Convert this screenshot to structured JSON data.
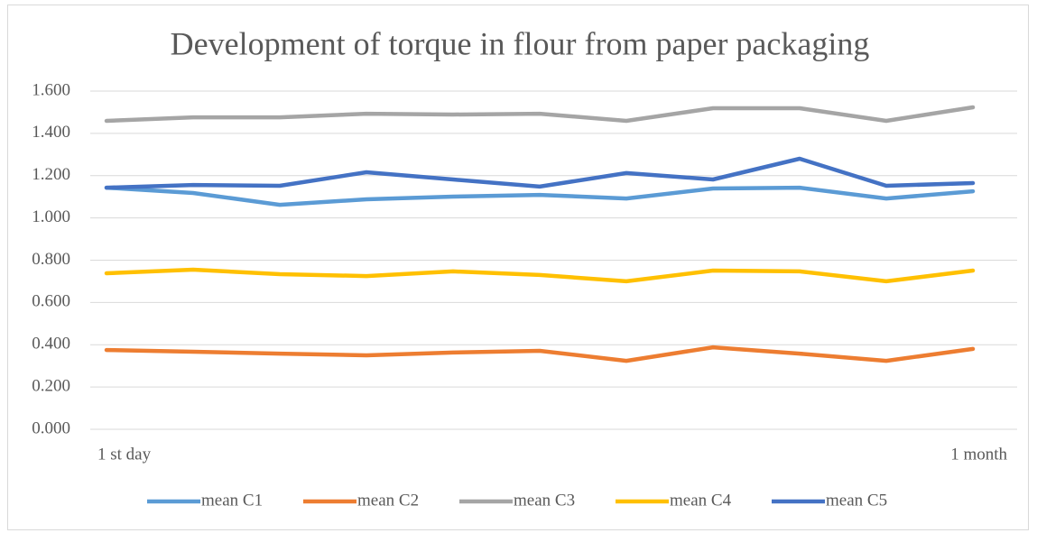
{
  "chart_data": {
    "type": "line",
    "title": "Development of torque in flour from paper packaging",
    "categories": [
      "1 st day",
      null,
      null,
      null,
      null,
      null,
      null,
      null,
      null,
      null,
      "1 month"
    ],
    "series": [
      {
        "name": "mean C1",
        "color": "#5b9bd5",
        "values": [
          1.143,
          1.118,
          1.062,
          1.088,
          1.101,
          1.109,
          1.092,
          1.139,
          1.143,
          1.092,
          1.126
        ]
      },
      {
        "name": "mean C2",
        "color": "#ed7d31",
        "values": [
          0.375,
          0.367,
          0.358,
          0.35,
          0.363,
          0.371,
          0.324,
          0.388,
          0.358,
          0.324,
          0.38
        ]
      },
      {
        "name": "mean C3",
        "color": "#a5a5a5",
        "values": [
          1.459,
          1.476,
          1.476,
          1.493,
          1.489,
          1.493,
          1.459,
          1.519,
          1.519,
          1.459,
          1.523
        ]
      },
      {
        "name": "mean C4",
        "color": "#ffc000",
        "values": [
          0.738,
          0.755,
          0.734,
          0.725,
          0.747,
          0.73,
          0.7,
          0.751,
          0.747,
          0.7,
          0.751
        ]
      },
      {
        "name": "mean C5",
        "color": "#4472c4",
        "values": [
          1.143,
          1.156,
          1.152,
          1.216,
          1.182,
          1.148,
          1.212,
          1.182,
          1.28,
          1.152,
          1.165
        ]
      }
    ],
    "ylim": [
      0,
      1.6
    ],
    "yticks": [
      {
        "value": 0,
        "label": "0.000"
      },
      {
        "value": 0.2,
        "label": "0.200"
      },
      {
        "value": 0.4,
        "label": "0.400"
      },
      {
        "value": 0.6,
        "label": "0.600"
      },
      {
        "value": 0.8,
        "label": "0.800"
      },
      {
        "value": 1.0,
        "label": "1.000"
      },
      {
        "value": 1.2,
        "label": "1.200"
      },
      {
        "value": 1.4,
        "label": "1.400"
      },
      {
        "value": 1.6,
        "label": "1.600"
      }
    ],
    "grid": true,
    "legend": "bottom"
  }
}
